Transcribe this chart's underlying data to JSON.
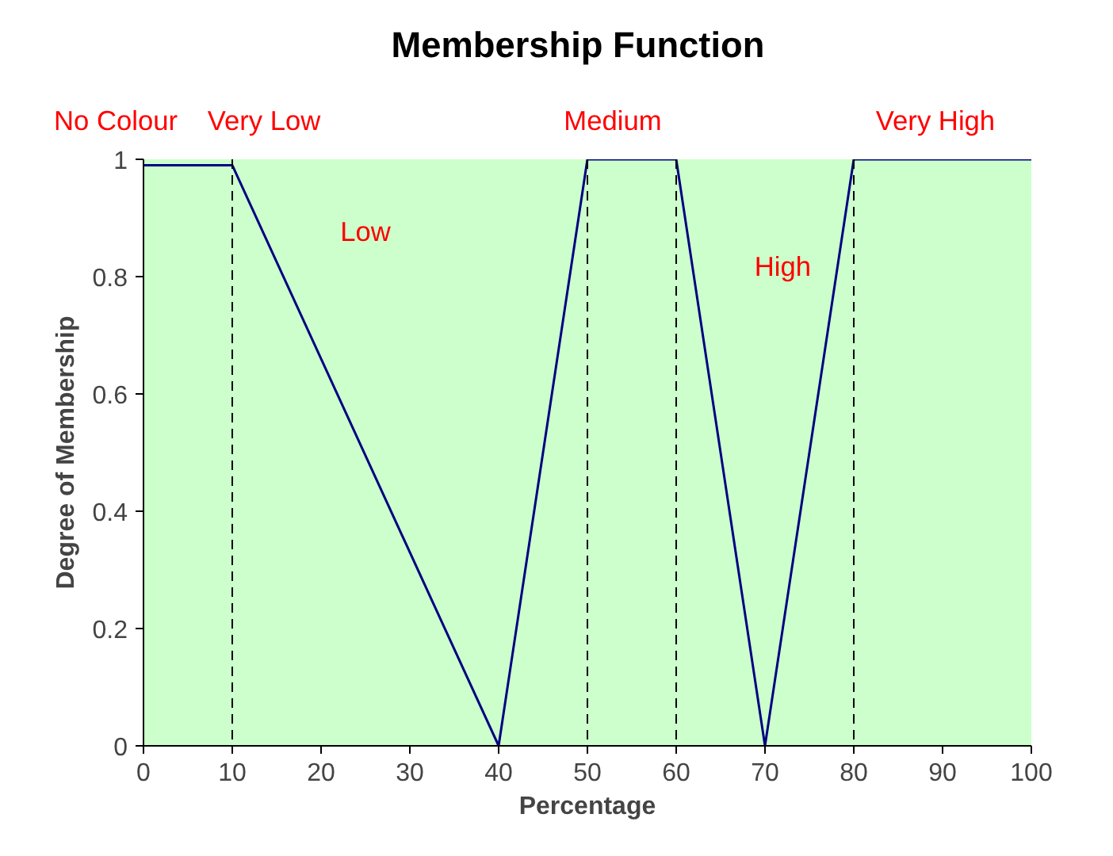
{
  "chart_data": {
    "type": "line",
    "title": "Membership Function",
    "xlabel": "Percentage",
    "ylabel": "Degree of Membership",
    "x": [
      0,
      10,
      40,
      50,
      60,
      70,
      80,
      100
    ],
    "series": [
      {
        "color": "#000080",
        "values": [
          0.99,
          0.99,
          0,
          1,
          1,
          0,
          1,
          1
        ]
      }
    ],
    "xlim": [
      0,
      100
    ],
    "ylim": [
      0,
      1
    ],
    "xticks": [
      0,
      10,
      20,
      30,
      40,
      50,
      60,
      70,
      80,
      90,
      100
    ],
    "yticks": [
      0,
      0.2,
      0.4,
      0.6,
      0.8,
      1
    ],
    "grid": false,
    "marker": "none",
    "line_style": "solid",
    "ref_lines": [
      {
        "axis": "x",
        "value": 10,
        "line_style": "dashed",
        "color": "#000000"
      },
      {
        "axis": "x",
        "value": 50,
        "line_style": "dashed",
        "color": "#000000"
      },
      {
        "axis": "x",
        "value": 60,
        "line_style": "dashed",
        "color": "#000000"
      },
      {
        "axis": "x",
        "value": 80,
        "line_style": "dashed",
        "color": "#000000"
      }
    ],
    "annotations": [
      "No Colour",
      "Very Low",
      "Medium",
      "Very High",
      "Low",
      "High"
    ]
  }
}
